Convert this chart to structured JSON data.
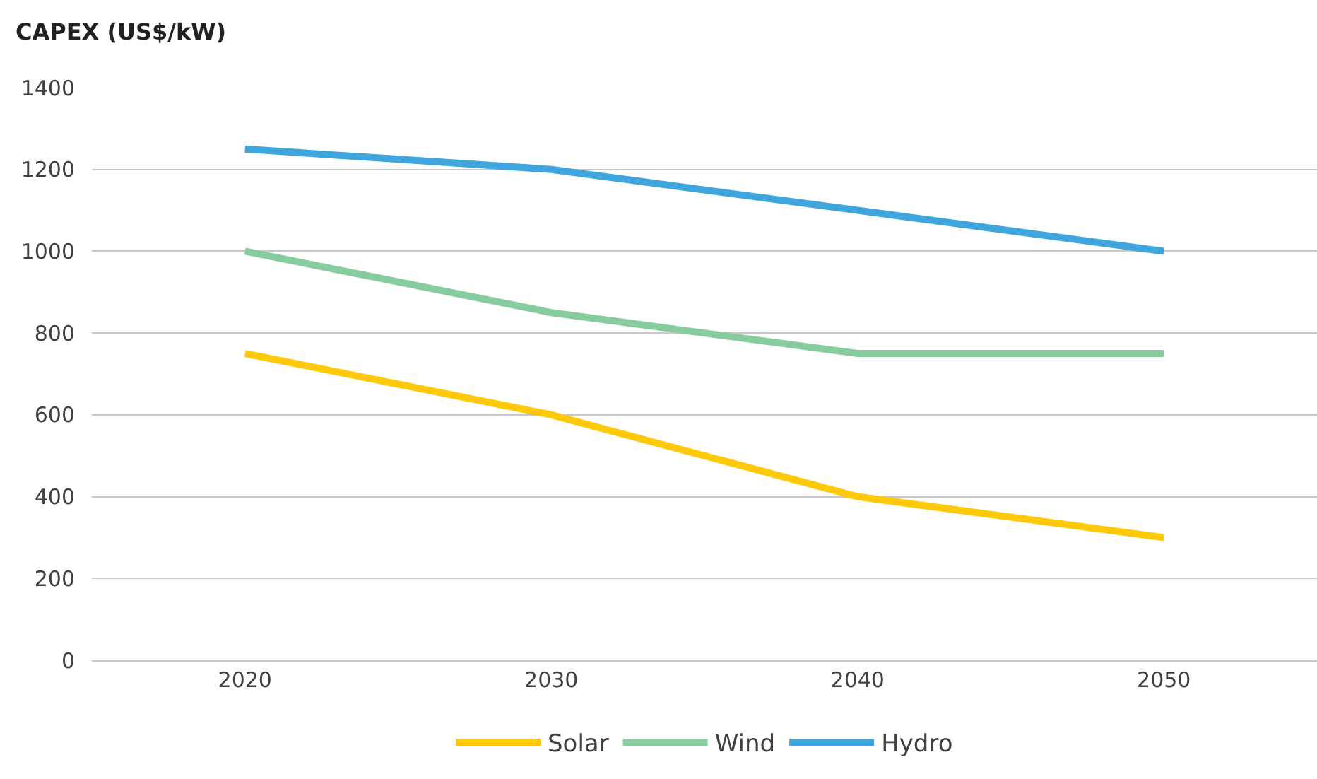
{
  "chart_data": {
    "type": "line",
    "ylabel": "CAPEX (US$/kW)",
    "categories": [
      "2020",
      "2030",
      "2040",
      "2050"
    ],
    "series": [
      {
        "name": "Solar",
        "color": "#ffc90a",
        "values": [
          750,
          600,
          400,
          300
        ]
      },
      {
        "name": "Wind",
        "color": "#86cc9e",
        "values": [
          1000,
          850,
          750,
          750
        ]
      },
      {
        "name": "Hydro",
        "color": "#41a5dd",
        "values": [
          1250,
          1200,
          1100,
          1000
        ]
      }
    ],
    "ylim": [
      0,
      1400
    ],
    "yticks": [
      0,
      200,
      400,
      600,
      800,
      1000,
      1200,
      1400
    ],
    "grid": "y",
    "legend": "bottom",
    "marker": "none",
    "line_style": "solid"
  }
}
